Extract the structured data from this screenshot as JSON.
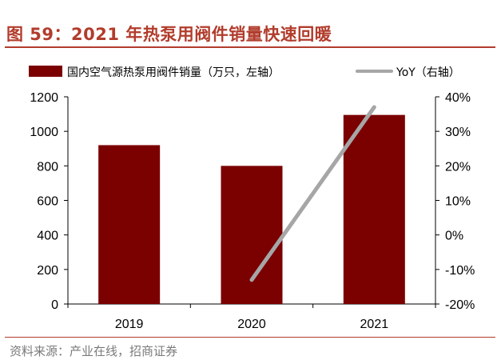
{
  "figure": {
    "title": "图 59：2021 年热泵用阀件销量快速回暖",
    "source": "资料来源：产业在线，招商证券"
  },
  "colors": {
    "bar": "#7b0000",
    "line": "#a6a6a6",
    "title": "#b23c2c"
  },
  "chart_data": {
    "type": "bar",
    "categories": [
      "2019",
      "2020",
      "2021"
    ],
    "series": [
      {
        "name": "国内空气源热泵用阀件销量（万只，左轴）",
        "type": "bar",
        "axis": "left",
        "values": [
          920,
          800,
          1095
        ]
      },
      {
        "name": "YoY（右轴）",
        "type": "line",
        "axis": "right",
        "values": [
          null,
          -13,
          37
        ]
      }
    ],
    "y_left": {
      "ylim": [
        0,
        1200
      ],
      "ticks": [
        0,
        200,
        400,
        600,
        800,
        1000,
        1200
      ],
      "tick_labels": [
        "0",
        "200",
        "400",
        "600",
        "800",
        "1000",
        "1200"
      ]
    },
    "y_right": {
      "ylim": [
        -20,
        40
      ],
      "ticks": [
        -20,
        -10,
        0,
        10,
        20,
        30,
        40
      ],
      "tick_labels": [
        "-20%",
        "-10%",
        "0%",
        "10%",
        "20%",
        "30%",
        "40%"
      ]
    },
    "legend_position": "top",
    "grid": false
  }
}
